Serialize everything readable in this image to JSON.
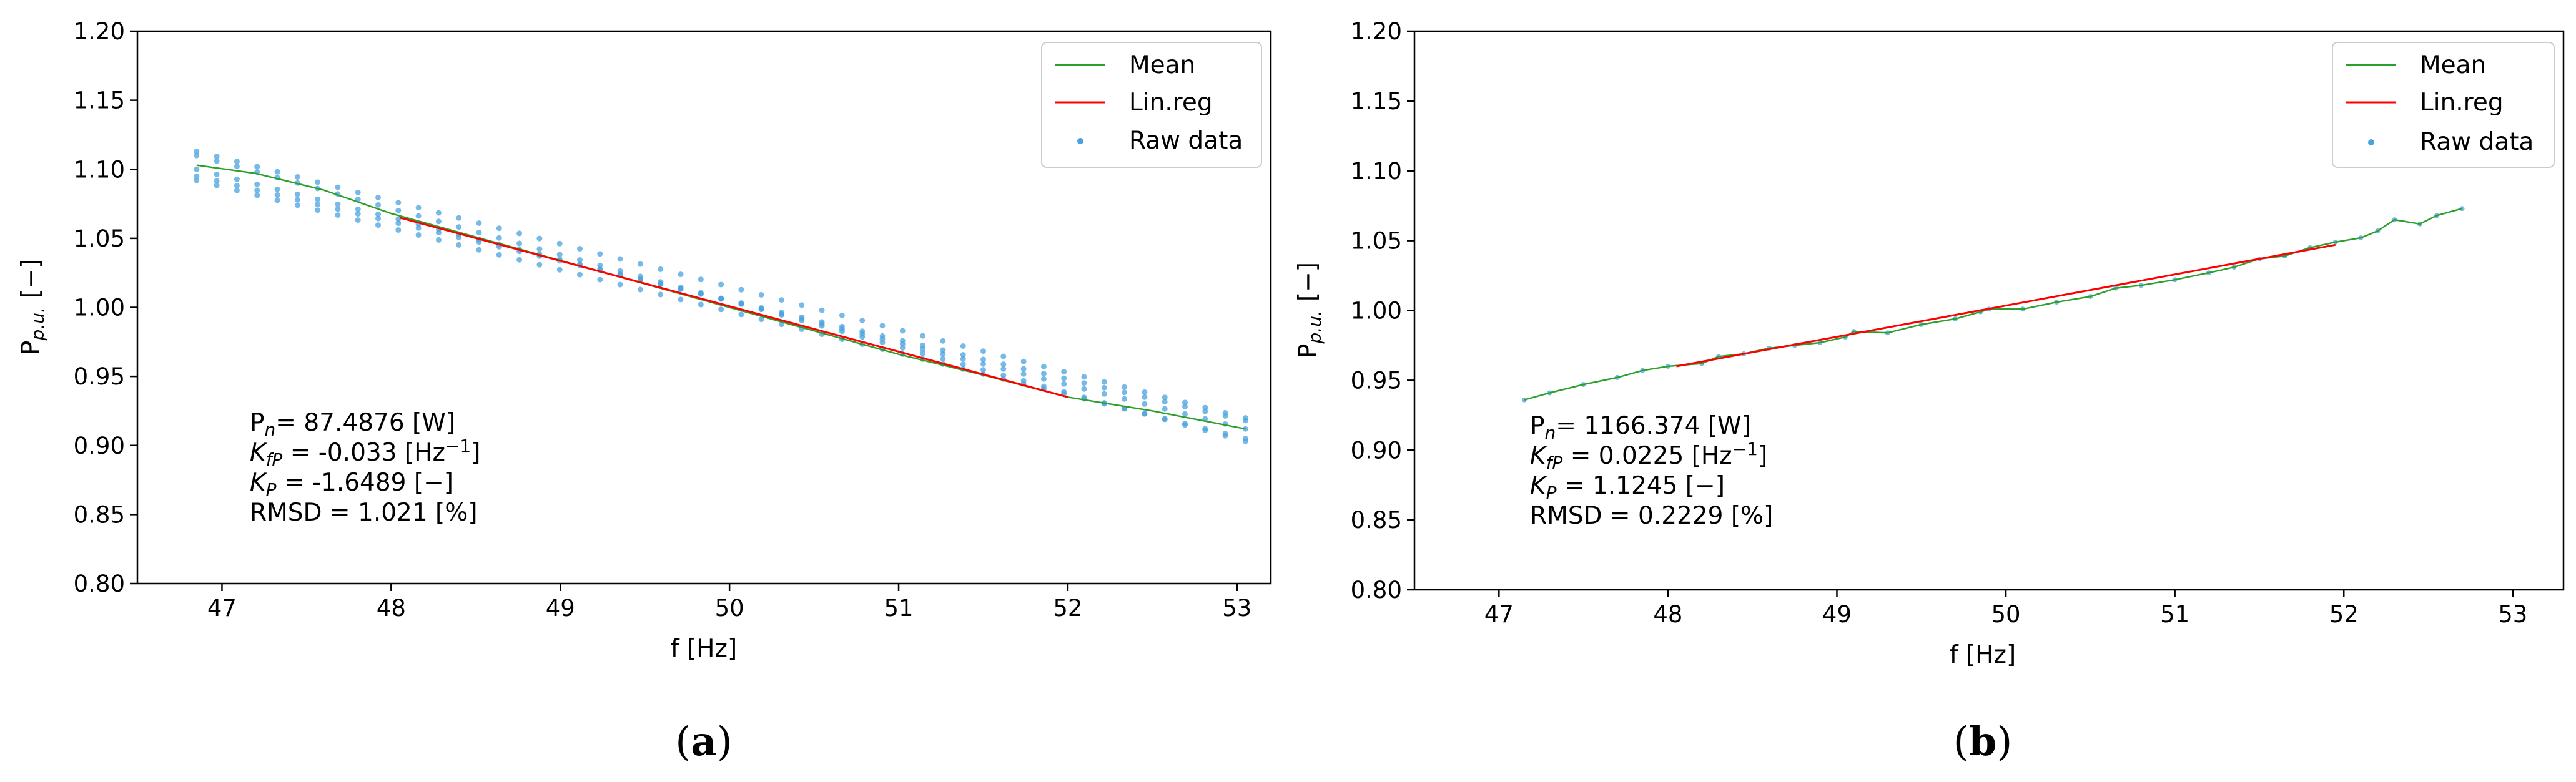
{
  "colors": {
    "mean": "#2ca02c",
    "linreg": "#ff0000",
    "raw": "#4aa3df"
  },
  "chart_data": [
    {
      "id": "a",
      "type": "line",
      "caption": "a",
      "xlabel": "f [Hz]",
      "ylabel_main": "P",
      "ylabel_sub": "p.u.",
      "ylabel_unit": "[−]",
      "xlim": [
        46.5,
        53.2
      ],
      "ylim": [
        0.8,
        1.2
      ],
      "xticks": [
        "47",
        "48",
        "49",
        "50",
        "51",
        "52",
        "53"
      ],
      "yticks": [
        "0.80",
        "0.85",
        "0.90",
        "0.95",
        "1.00",
        "1.05",
        "1.10",
        "1.15",
        "1.20"
      ],
      "legend": [
        "Mean",
        "Lin.reg",
        "Raw data"
      ],
      "annotations": {
        "pn_label": "P",
        "pn_sub": "n",
        "pn_value": "= 87.4876 [W]",
        "kfp_label": "K",
        "kfp_sub": "fP",
        "kfp_value": " = -0.033 [Hz",
        "kfp_sup": "−1",
        "kfp_close": "]",
        "kp_label": "K",
        "kp_sub": "P",
        "kp_value": " = -1.6489 [−]",
        "rmsd": "RMSD = 1.021 [%]"
      },
      "series": [
        {
          "name": "Mean",
          "x": [
            46.85,
            47.2,
            47.6,
            48.0,
            48.5,
            49.0,
            49.5,
            50.0,
            50.5,
            51.0,
            51.5,
            52.0,
            52.5,
            53.05
          ],
          "y": [
            1.103,
            1.097,
            1.085,
            1.068,
            1.051,
            1.034,
            1.017,
            1.0,
            0.983,
            0.966,
            0.951,
            0.935,
            0.925,
            0.912
          ]
        },
        {
          "name": "Lin.reg",
          "x": [
            48.05,
            52.0
          ],
          "y": [
            1.065,
            0.935
          ]
        },
        {
          "name": "Raw data",
          "tracks": [
            {
              "x0": 46.85,
              "y0": 1.113,
              "x1": 53.05,
              "y1": 0.92
            },
            {
              "x0": 46.85,
              "y0": 1.1,
              "x1": 53.05,
              "y1": 0.912
            },
            {
              "x0": 46.85,
              "y0": 1.092,
              "x1": 53.05,
              "y1": 0.905
            },
            {
              "x0": 46.85,
              "y0": 1.11,
              "x1": 53.05,
              "y1": 0.903
            },
            {
              "x0": 46.85,
              "y0": 1.095,
              "x1": 53.05,
              "y1": 0.918
            }
          ]
        }
      ]
    },
    {
      "id": "b",
      "type": "line",
      "caption": "b",
      "xlabel": "f [Hz]",
      "ylabel_main": "P",
      "ylabel_sub": "p.u.",
      "ylabel_unit": "[−]",
      "xlim": [
        46.5,
        53.3
      ],
      "ylim": [
        0.8,
        1.2
      ],
      "xticks": [
        "47",
        "48",
        "49",
        "50",
        "51",
        "52",
        "53"
      ],
      "yticks": [
        "0.80",
        "0.85",
        "0.90",
        "0.95",
        "1.00",
        "1.05",
        "1.10",
        "1.15",
        "1.20"
      ],
      "legend": [
        "Mean",
        "Lin.reg",
        "Raw data"
      ],
      "annotations": {
        "pn_label": "P",
        "pn_sub": "n",
        "pn_value": "= 1166.374 [W]",
        "kfp_label": "K",
        "kfp_sub": "fP",
        "kfp_value": " = 0.0225 [Hz",
        "kfp_sup": "−1",
        "kfp_close": "]",
        "kp_label": "K",
        "kp_sub": "P",
        "kp_value": " = 1.1245 [−]",
        "rmsd": "RMSD = 0.2229 [%]"
      },
      "series": [
        {
          "name": "Mean",
          "x": [
            47.15,
            47.3,
            47.5,
            47.7,
            47.85,
            48.0,
            48.2,
            48.3,
            48.45,
            48.6,
            48.75,
            48.9,
            49.05,
            49.1,
            49.3,
            49.5,
            49.7,
            49.85,
            49.9,
            50.1,
            50.3,
            50.5,
            50.65,
            50.8,
            51.0,
            51.2,
            51.35,
            51.5,
            51.65,
            51.8,
            51.95,
            52.1,
            52.2,
            52.3,
            52.45,
            52.55,
            52.7
          ],
          "y": [
            0.936,
            0.941,
            0.947,
            0.952,
            0.957,
            0.96,
            0.962,
            0.967,
            0.969,
            0.973,
            0.975,
            0.977,
            0.981,
            0.985,
            0.984,
            0.99,
            0.994,
            0.999,
            1.001,
            1.001,
            1.006,
            1.01,
            1.016,
            1.018,
            1.022,
            1.027,
            1.031,
            1.037,
            1.039,
            1.045,
            1.049,
            1.052,
            1.057,
            1.065,
            1.062,
            1.068,
            1.073
          ]
        },
        {
          "name": "Lin.reg",
          "x": [
            48.05,
            51.95
          ],
          "y": [
            0.96,
            1.047
          ]
        },
        {
          "name": "Raw data",
          "x": [
            47.15,
            47.3,
            47.5,
            47.7,
            47.85,
            48.0,
            48.2,
            48.3,
            48.45,
            48.6,
            48.75,
            48.9,
            49.05,
            49.1,
            49.3,
            49.5,
            49.7,
            49.85,
            49.9,
            50.1,
            50.3,
            50.5,
            50.65,
            50.8,
            51.0,
            51.2,
            51.35,
            51.5,
            51.65,
            51.8,
            51.95,
            52.1,
            52.2,
            52.3,
            52.45,
            52.55,
            52.7
          ],
          "y": [
            0.936,
            0.941,
            0.947,
            0.952,
            0.957,
            0.96,
            0.962,
            0.967,
            0.969,
            0.973,
            0.975,
            0.977,
            0.981,
            0.985,
            0.984,
            0.99,
            0.994,
            0.999,
            1.001,
            1.001,
            1.006,
            1.01,
            1.016,
            1.018,
            1.022,
            1.027,
            1.031,
            1.037,
            1.039,
            1.045,
            1.049,
            1.052,
            1.057,
            1.065,
            1.062,
            1.068,
            1.073
          ]
        }
      ]
    }
  ]
}
